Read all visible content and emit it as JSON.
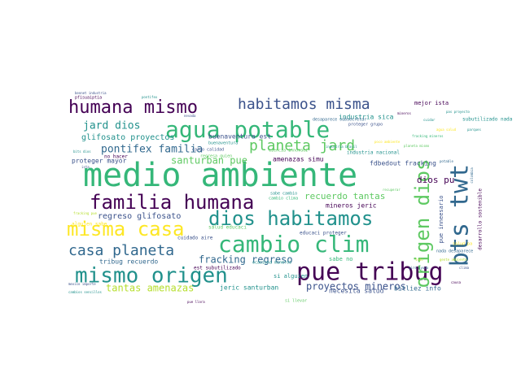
{
  "word_cloud": {
    "background": "#ffffff",
    "palette": [
      "#440154",
      "#3b528b",
      "#21918c",
      "#35b779",
      "#5ec962",
      "#fde725",
      "#31688e",
      "#b5de2b"
    ],
    "words": [
      {
        "text": "medio ambiente",
        "color": "#35b779"
      },
      {
        "text": "agua potable",
        "color": "#35b779"
      },
      {
        "text": "pue tribug",
        "color": "#440154"
      },
      {
        "text": "cambio clim",
        "color": "#35b779"
      },
      {
        "text": "mismo origen",
        "color": "#21918c"
      },
      {
        "text": "humana mismo",
        "color": "#440154"
      },
      {
        "text": "familia humana",
        "color": "#440154"
      },
      {
        "text": "dios habitamos",
        "color": "#21918c"
      },
      {
        "text": "misma casa",
        "color": "#fde725"
      },
      {
        "text": "origen dios",
        "color": "#5ec962"
      },
      {
        "text": "bts twt",
        "color": "#31688e"
      },
      {
        "text": "habitamos misma",
        "color": "#3b528b"
      },
      {
        "text": "casa planeta",
        "color": "#31688e"
      },
      {
        "text": "planeta jard",
        "color": "#5ec962"
      },
      {
        "text": "pontifex familia",
        "color": "#31688e"
      },
      {
        "text": "jard dios",
        "color": "#21918c"
      },
      {
        "text": "santurban pue",
        "color": "#5ec962"
      },
      {
        "text": "fracking regreso",
        "color": "#31688e"
      },
      {
        "text": "recuerdo tantas",
        "color": "#5ec962"
      },
      {
        "text": "tantas amenazas",
        "color": "#b5de2b"
      },
      {
        "text": "proyectos mineros",
        "color": "#3b528b"
      },
      {
        "text": "dios pu",
        "color": "#440154"
      },
      {
        "text": "glifosato proyectos",
        "color": "#21918c"
      },
      {
        "text": "regreso glifosato",
        "color": "#3b528b"
      },
      {
        "text": "buenaventura est",
        "color": "#3b528b"
      },
      {
        "text": "industria sica",
        "color": "#21918c"
      },
      {
        "text": "proteger mayor",
        "color": "#3b528b"
      },
      {
        "text": "tribug recuerdo",
        "color": "#31688e"
      },
      {
        "text": "amenazas simu",
        "color": "#440154"
      },
      {
        "text": "fdbedout fracking",
        "color": "#3b528b"
      },
      {
        "text": "mineros jeric",
        "color": "#440154"
      },
      {
        "text": "jeric santurban",
        "color": "#21918c"
      },
      {
        "text": "necesita salud",
        "color": "#3b528b"
      },
      {
        "text": "bitliez info",
        "color": "#31688e"
      },
      {
        "text": "pue inneesario",
        "color": "#3b528b"
      },
      {
        "text": "mejor ista",
        "color": "#440154"
      },
      {
        "text": "si alguien",
        "color": "#21918c"
      },
      {
        "text": "sabe no",
        "color": "#35b779"
      },
      {
        "text": "alguien sabe",
        "color": "#fde725"
      },
      {
        "text": "industria nacional",
        "color": "#21918c"
      },
      {
        "text": "educaci proteger",
        "color": "#3b528b"
      },
      {
        "text": "desarrollo sostenible",
        "color": "#440154"
      },
      {
        "text": "salud educaci",
        "color": "#5ec962"
      },
      {
        "text": "cuidado aire",
        "color": "#3b528b"
      },
      {
        "text": "est subutilizado",
        "color": "#440154"
      },
      {
        "text": "subutilizado nada",
        "color": "#21918c"
      },
      {
        "text": "no hacer",
        "color": "#440154"
      },
      {
        "text": "desaparece subsecretar",
        "color": "#31688e"
      },
      {
        "text": "cambio clima",
        "color": "#35b779"
      },
      {
        "text": "ciencia innovaci",
        "color": "#5ec962"
      },
      {
        "text": "sabe cambio",
        "color": "#21918c"
      },
      {
        "text": "cargo calidad",
        "color": "#3b528b"
      },
      {
        "text": "si llevar",
        "color": "#5ec962"
      },
      {
        "text": "salud pa",
        "color": "#fde725"
      },
      {
        "text": "nada desaparece",
        "color": "#31688e"
      },
      {
        "text": "buenaventura",
        "color": "#21918c"
      },
      {
        "text": "pfisuaiptia",
        "color": "#440154"
      },
      {
        "text": "regresa quien",
        "color": "#5ec962"
      },
      {
        "text": "ocasiona mineros",
        "color": "#21918c"
      },
      {
        "text": "proteger grupo",
        "color": "#3b528b"
      },
      {
        "text": "bennet industria",
        "color": "#3b528b"
      },
      {
        "text": "pontifex",
        "color": "#21918c"
      },
      {
        "text": "agua salud",
        "color": "#fde725"
      },
      {
        "text": "fracking pue",
        "color": "#b5de2b"
      },
      {
        "text": "fracking mineros",
        "color": "#35b779"
      },
      {
        "text": "ista",
        "color": "#3b528b"
      },
      {
        "text": "colombia",
        "color": "#31688e"
      },
      {
        "text": "pas proyecto",
        "color": "#21918c"
      },
      {
        "text": "gente ambiente",
        "color": "#b5de2b"
      },
      {
        "text": "mexico importe",
        "color": "#3b528b"
      },
      {
        "text": "cambios sencillos",
        "color": "#21918c"
      },
      {
        "text": "aire ayuda",
        "color": "#31688e"
      },
      {
        "text": "bits dios",
        "color": "#21918c"
      },
      {
        "text": "pue llora",
        "color": "#440154"
      },
      {
        "text": "poco ambiente",
        "color": "#fde725"
      },
      {
        "text": "industria brasil",
        "color": "#21918c"
      },
      {
        "text": "todo",
        "color": "#b5de2b"
      },
      {
        "text": "planeta mismo",
        "color": "#5ec962"
      },
      {
        "text": "mineros",
        "color": "#440154"
      },
      {
        "text": "nevada",
        "color": "#3b528b"
      },
      {
        "text": "parques",
        "color": "#21918c"
      },
      {
        "text": "recuperar",
        "color": "#5ec962"
      },
      {
        "text": "potable",
        "color": "#31688e"
      },
      {
        "text": "cuidar",
        "color": "#21918c"
      },
      {
        "text": "clima",
        "color": "#3b528b"
      },
      {
        "text": "causa",
        "color": "#440154"
      }
    ]
  }
}
